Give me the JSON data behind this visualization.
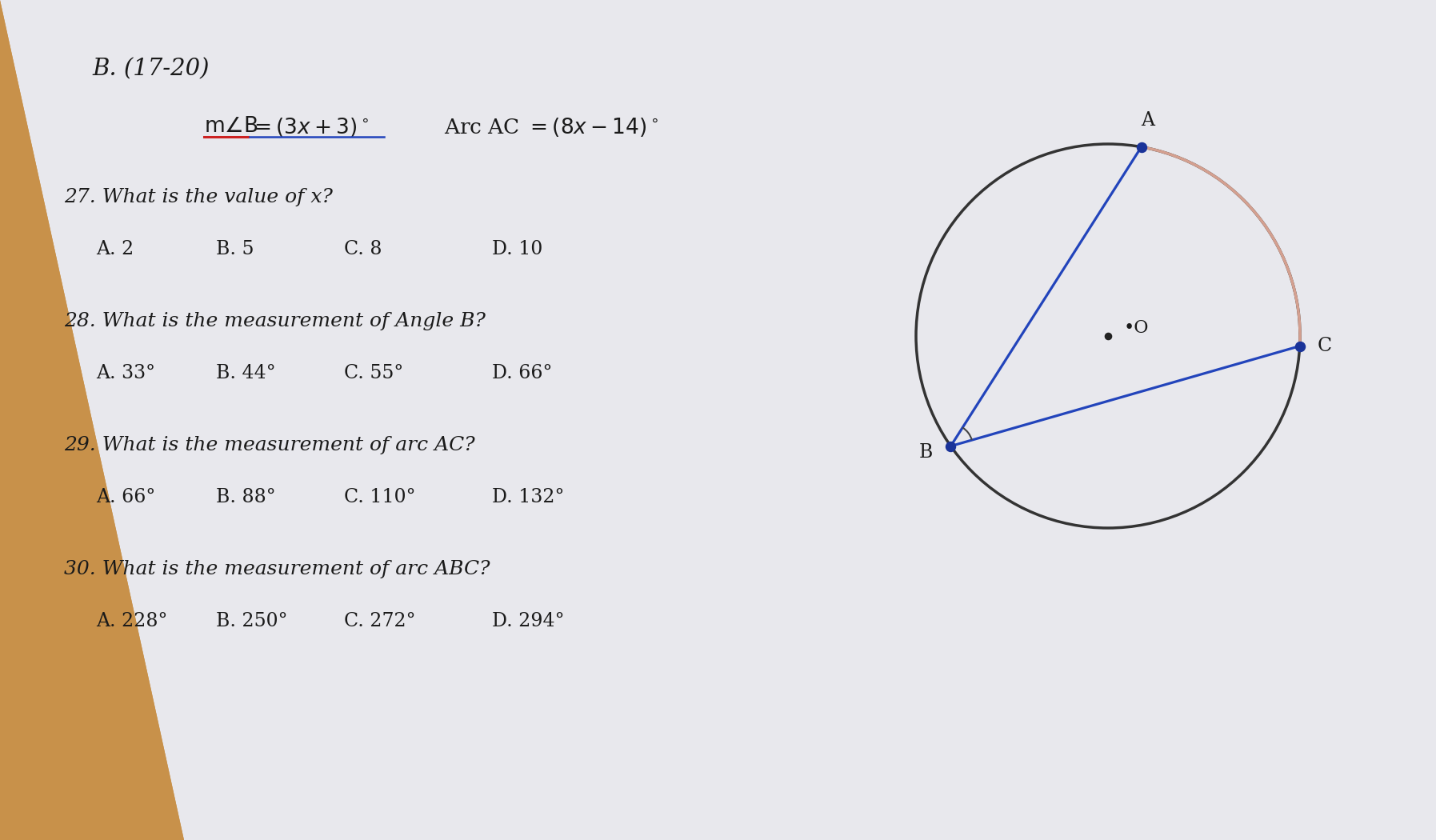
{
  "bg_wood_color": "#c8914a",
  "bg_paper_color": "#e8e8ed",
  "title": "B. (17-20)",
  "q27": "27. What is the value of x?",
  "q27_A": "A. 2",
  "q27_B": "B. 5",
  "q27_C": "C. 8",
  "q27_D": "D. 10",
  "q28": "28. What is the measurement of Angle B?",
  "q28_A": "A. 33°",
  "q28_B": "B. 44°",
  "q28_C": "C. 55°",
  "q28_D": "D. 66°",
  "q29": "29. What is the measurement of arc AC?",
  "q29_A": "A. 66°",
  "q29_B": "B. 88°",
  "q29_C": "C. 110°",
  "q29_D": "D. 132°",
  "q30": "30. What is the measurement of arc ABC?",
  "q30_A": "A. 228°",
  "q30_B": "B. 250°",
  "q30_C": "C. 272°",
  "q30_D": "D. 294°",
  "text_color": "#1a1a1a",
  "blue_color": "#2244bb",
  "arc_color": "#d4a090",
  "dot_color": "#1a3399",
  "circle_color": "#333333"
}
